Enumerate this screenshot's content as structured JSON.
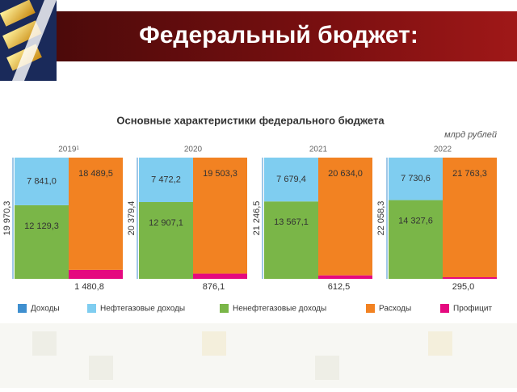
{
  "header": {
    "title": "Федеральный бюджет:"
  },
  "chart_data": {
    "type": "bar",
    "title": "Основные характеристики федерального бюджета",
    "unit": "млрд рублей",
    "categories": [
      "2019¹",
      "2020",
      "2021",
      "2022"
    ],
    "series": [
      {
        "name": "Доходы",
        "color": "#3f8fcf",
        "values": [
          19970.3,
          20379.4,
          21246.5,
          22058.3
        ],
        "value_labels": [
          "19 970,3",
          "20 379,4",
          "21 246,5",
          "22 058,3"
        ]
      },
      {
        "name": "Нефтегазовые доходы",
        "color": "#7fcdf0",
        "values": [
          7841.0,
          7472.2,
          7679.4,
          7730.6
        ],
        "value_labels": [
          "7 841,0",
          "7 472,2",
          "7 679,4",
          "7 730,6"
        ]
      },
      {
        "name": "Ненефтегазовые доходы",
        "color": "#7ab648",
        "values": [
          12129.3,
          12907.1,
          13567.1,
          14327.6
        ],
        "value_labels": [
          "12 129,3",
          "12 907,1",
          "13 567,1",
          "14 327,6"
        ]
      },
      {
        "name": "Расходы",
        "color": "#f28222",
        "values": [
          18489.5,
          19503.3,
          20634.0,
          21763.3
        ],
        "value_labels": [
          "18 489,5",
          "19 503,3",
          "20 634,0",
          "21 763,3"
        ]
      },
      {
        "name": "Профицит",
        "color": "#e5097f",
        "values": [
          1480.8,
          876.1,
          612.5,
          295.0
        ],
        "value_labels": [
          "1 480,8",
          "876,1",
          "612,5",
          "295,0"
        ]
      }
    ]
  }
}
